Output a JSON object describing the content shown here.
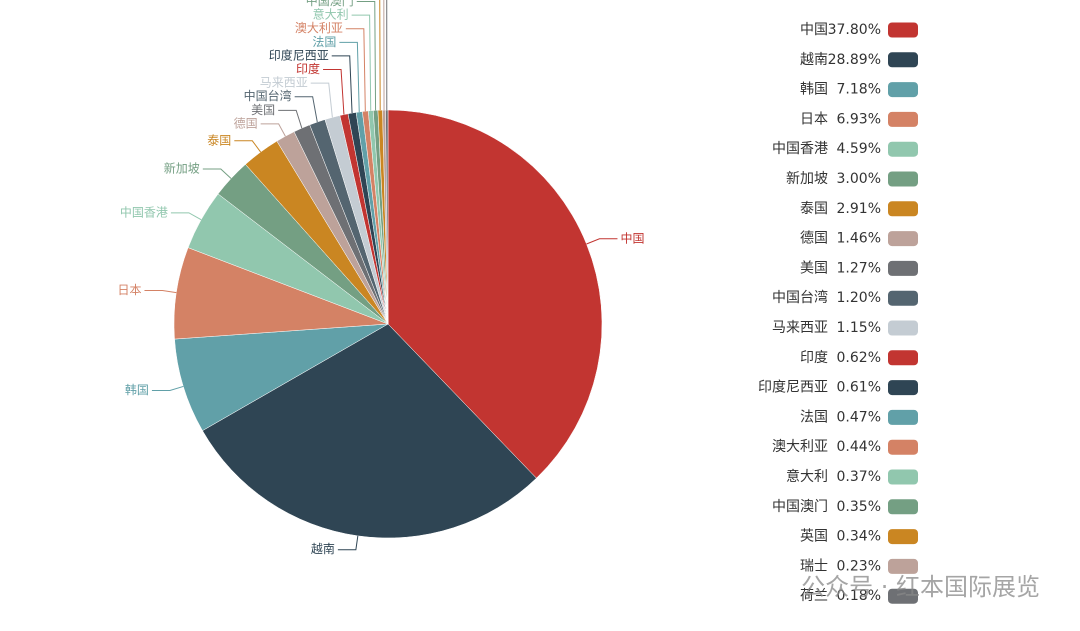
{
  "chart_data": {
    "type": "pie",
    "categories": [
      "中国",
      "越南",
      "韩国",
      "日本",
      "中国香港",
      "新加坡",
      "泰国",
      "德国",
      "美国",
      "中国台湾",
      "马来西亚",
      "印度",
      "印度尼西亚",
      "法国",
      "澳大利亚",
      "意大利",
      "中国澳门",
      "英国",
      "瑞士",
      "荷兰"
    ],
    "values": [
      37.8,
      28.89,
      7.18,
      6.93,
      4.59,
      3.0,
      2.91,
      1.46,
      1.27,
      1.2,
      1.15,
      0.62,
      0.61,
      0.47,
      0.44,
      0.37,
      0.35,
      0.34,
      0.23,
      0.18
    ],
    "value_labels": [
      "37.80%",
      "28.89%",
      "7.18%",
      "6.93%",
      "4.59%",
      "3.00%",
      "2.91%",
      "1.46%",
      "1.27%",
      "1.20%",
      "1.15%",
      "0.62%",
      "0.61%",
      "0.47%",
      "0.44%",
      "0.37%",
      "0.35%",
      "0.34%",
      "0.23%",
      "0.18%"
    ],
    "colors": [
      "#c23531",
      "#2f4554",
      "#61a0a8",
      "#d48265",
      "#91c7ae",
      "#749f83",
      "#ca8622",
      "#bda29a",
      "#6e7074",
      "#546570",
      "#c4ccd3",
      "#c23531",
      "#2f4554",
      "#61a0a8",
      "#d48265",
      "#91c7ae",
      "#749f83",
      "#ca8622",
      "#bda29a",
      "#6e7074"
    ],
    "legend_position": "right",
    "watermark": "公众号 · 红本国际展览"
  }
}
